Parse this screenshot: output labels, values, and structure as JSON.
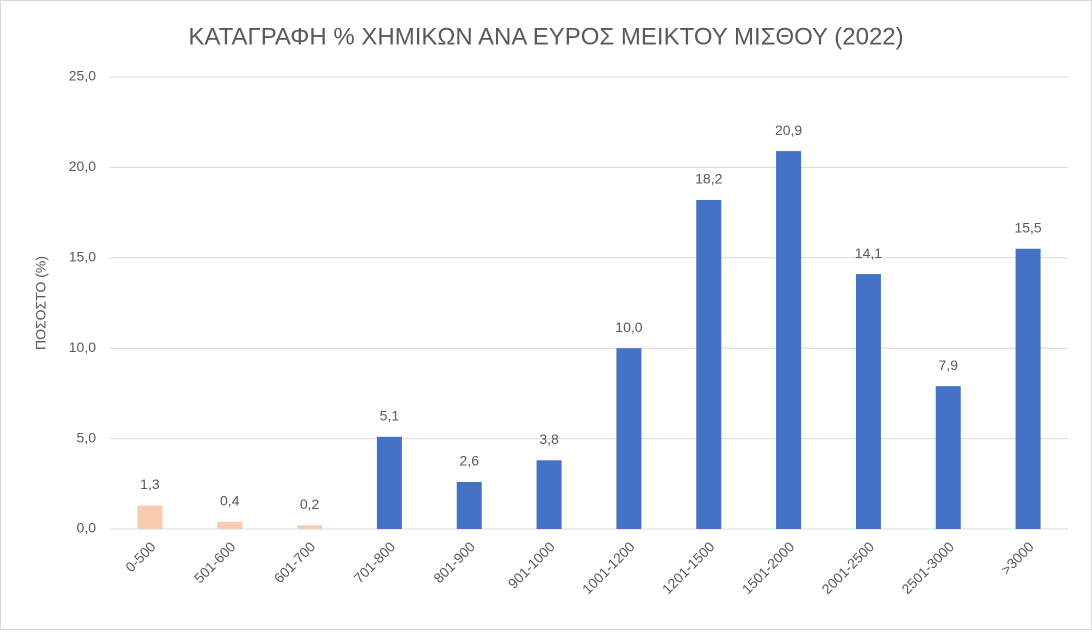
{
  "chart_data": {
    "type": "bar",
    "title": "ΚΑΤΑΓΡΑΦΗ % ΧΗΜΙΚΩΝ ΑΝΑ ΕΥΡΟΣ ΜΕΙΚΤΟΥ ΜΙΣΘΟΥ (2022)",
    "y_label": "ΠΟΣΟΣΤΟ (%)",
    "categories": [
      "0-500",
      "501-600",
      "601-700",
      "701-800",
      "801-900",
      "901-1000",
      "1001-1200",
      "1201-1500",
      "1501-2000",
      "2001-2500",
      "2501-3000",
      ">3000"
    ],
    "values": [
      1.3,
      0.4,
      0.2,
      5.1,
      2.6,
      3.8,
      10.0,
      18.2,
      20.9,
      14.1,
      7.9,
      15.5
    ],
    "value_labels": [
      "1,3",
      "0,4",
      "0,2",
      "5,1",
      "2,6",
      "3,8",
      "10,0",
      "18,2",
      "20,9",
      "14,1",
      "7,9",
      "15,5"
    ],
    "colors": [
      "#f8cbad",
      "#f8cbad",
      "#f8cbad",
      "#4472c4",
      "#4472c4",
      "#4472c4",
      "#4472c4",
      "#4472c4",
      "#4472c4",
      "#4472c4",
      "#4472c4",
      "#4472c4"
    ],
    "ylim": [
      0,
      25
    ],
    "yticks": [
      {
        "value": 0,
        "label": "0,0"
      },
      {
        "value": 5,
        "label": "5,0"
      },
      {
        "value": 10,
        "label": "10,0"
      },
      {
        "value": 15,
        "label": "15,0"
      },
      {
        "value": 20,
        "label": "20,0"
      },
      {
        "value": 25,
        "label": "25,0"
      }
    ],
    "grid": true
  }
}
